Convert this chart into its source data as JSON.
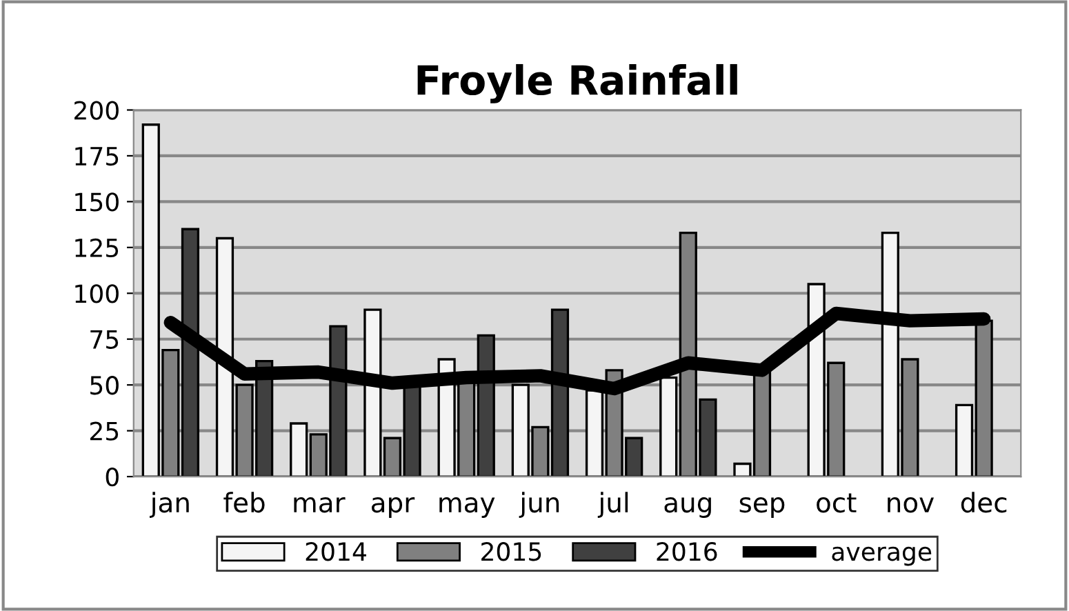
{
  "chart_data": {
    "type": "bar",
    "title": "Froyle Rainfall",
    "categories": [
      "jan",
      "feb",
      "mar",
      "apr",
      "may",
      "jun",
      "jul",
      "aug",
      "sep",
      "oct",
      "nov",
      "dec"
    ],
    "series": [
      {
        "name": "2014",
        "color": "#f5f5f5",
        "values": [
          192,
          130,
          29,
          91,
          64,
          50,
          47,
          54,
          7,
          105,
          133,
          39
        ]
      },
      {
        "name": "2015",
        "color": "#808080",
        "values": [
          69,
          50,
          23,
          21,
          52,
          27,
          58,
          133,
          58,
          62,
          64,
          85
        ]
      },
      {
        "name": "2016",
        "color": "#404040",
        "values": [
          135,
          63,
          82,
          50,
          77,
          91,
          21,
          42,
          null,
          null,
          null,
          null
        ]
      },
      {
        "name": "average",
        "color": "#000000",
        "type": "line",
        "values": [
          84,
          56,
          57,
          51,
          54,
          55,
          48,
          62,
          58,
          89,
          85,
          86
        ]
      }
    ],
    "ylim": [
      0,
      200
    ],
    "yticks": [
      0,
      25,
      50,
      75,
      100,
      125,
      150,
      175,
      200
    ],
    "grid": "y",
    "legend": "bottom"
  }
}
